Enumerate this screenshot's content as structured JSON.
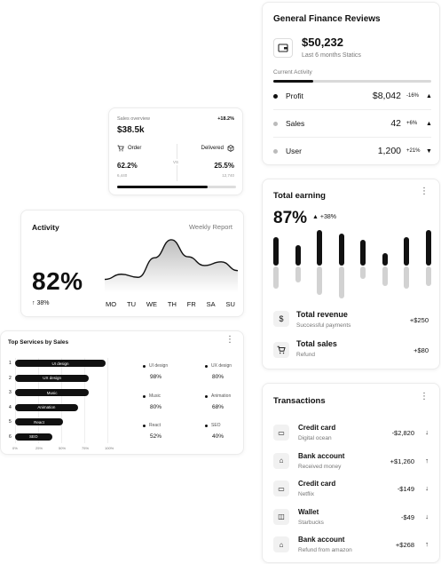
{
  "finance": {
    "title": "General Finance Reviews",
    "amount": "$50,232",
    "amount_sub": "Last 6 months Statics",
    "current_label": "Current Activity",
    "progress": 0.25,
    "rows": [
      {
        "label": "Profit",
        "value": "$8,042",
        "pct": "-16%",
        "dir": "up",
        "color": "#111111"
      },
      {
        "label": "Sales",
        "value": "42",
        "pct": "+6%",
        "dir": "up",
        "color": "#bbbbbb"
      },
      {
        "label": "User",
        "value": "1,200",
        "pct": "+21%",
        "dir": "down",
        "color": "#bbbbbb"
      }
    ]
  },
  "sales_overview": {
    "label": "Sales overview",
    "pct": "+18.2%",
    "value": "$38.5k",
    "order_label": "Order",
    "delivered_label": "Delivered",
    "vs": "VS",
    "order_pct": "62.2%",
    "order_num": "6,440",
    "delivered_pct": "25.5%",
    "delivered_num": "12,740",
    "progress": 0.76
  },
  "activity": {
    "title": "Activity",
    "weekly": "Weekly Report",
    "big": "82%",
    "change": "38%",
    "days": [
      "MO",
      "TU",
      "WE",
      "TH",
      "FR",
      "SA",
      "SU"
    ],
    "curve": [
      0.18,
      0.28,
      0.22,
      0.6,
      0.95,
      0.62,
      0.45,
      0.52,
      0.35
    ]
  },
  "top_services": {
    "title": "Top Services by Sales",
    "items": [
      {
        "num": "1",
        "label": "UI design",
        "value": 98
      },
      {
        "num": "2",
        "label": "UX design",
        "value": 80
      },
      {
        "num": "3",
        "label": "Music",
        "value": 80
      },
      {
        "num": "4",
        "label": "Animation",
        "value": 68
      },
      {
        "num": "5",
        "label": "React",
        "value": 52
      },
      {
        "num": "6",
        "label": "SEO",
        "value": 40
      }
    ],
    "ticks": [
      "0%",
      "25%",
      "50%",
      "75%",
      "100%"
    ],
    "legend": [
      {
        "label": "UI design",
        "value": "98%"
      },
      {
        "label": "UX design",
        "value": "80%"
      },
      {
        "label": "Music",
        "value": "80%"
      },
      {
        "label": "Animation",
        "value": "68%"
      },
      {
        "label": "React",
        "value": "52%"
      },
      {
        "label": "SEO",
        "value": "40%"
      }
    ]
  },
  "total_earning": {
    "title": "Total earning",
    "big": "87%",
    "change": "+38%",
    "columns": [
      {
        "top": 0.45,
        "bottom": 0.35
      },
      {
        "top": 0.32,
        "bottom": 0.25
      },
      {
        "top": 0.55,
        "bottom": 0.45
      },
      {
        "top": 0.5,
        "bottom": 0.5
      },
      {
        "top": 0.4,
        "bottom": 0.2
      },
      {
        "top": 0.2,
        "bottom": 0.3
      },
      {
        "top": 0.45,
        "bottom": 0.35
      },
      {
        "top": 0.55,
        "bottom": 0.3
      },
      {
        "top": 0.38,
        "bottom": 0.2
      }
    ],
    "rows": [
      {
        "icon": "$",
        "title": "Total revenue",
        "sub": "Successful payments",
        "value": "+$250"
      },
      {
        "icon": "🛒",
        "title": "Total sales",
        "sub": "Refund",
        "value": "+$80"
      }
    ]
  },
  "transactions": {
    "title": "Transactions",
    "items": [
      {
        "icon": "▭",
        "name": "Credit card",
        "sub": "Digital ocean",
        "amount": "-$2,820",
        "arrow": "↓"
      },
      {
        "icon": "⌂",
        "name": "Bank account",
        "sub": "Received money",
        "amount": "+$1,260",
        "arrow": "↑"
      },
      {
        "icon": "▭",
        "name": "Credit card",
        "sub": "Netflix",
        "amount": "-$149",
        "arrow": "↓"
      },
      {
        "icon": "◫",
        "name": "Wallet",
        "sub": "Starbucks",
        "amount": "-$49",
        "arrow": "↓"
      },
      {
        "icon": "⌂",
        "name": "Bank account",
        "sub": "Refund from amazon",
        "amount": "+$268",
        "arrow": "↑"
      }
    ]
  }
}
